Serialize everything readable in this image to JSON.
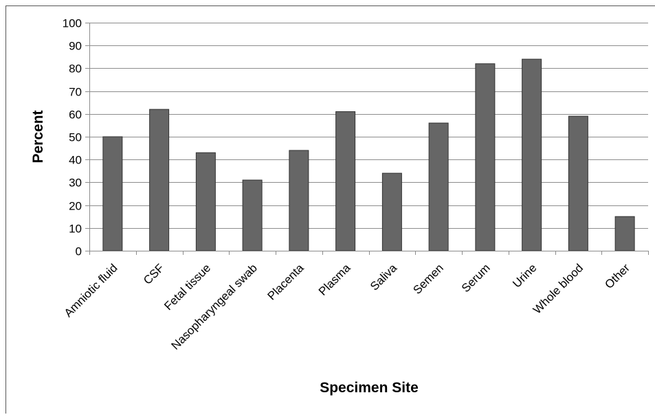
{
  "chart_data": {
    "type": "bar",
    "title": "",
    "xlabel": "Specimen Site",
    "ylabel": "Percent",
    "ylim": [
      0,
      100
    ],
    "yticks": [
      0,
      10,
      20,
      30,
      40,
      50,
      60,
      70,
      80,
      90,
      100
    ],
    "grid": true,
    "legend": "none",
    "bar_color": "#666666",
    "categories": [
      "Amniotic fluid",
      "CSF",
      "Fetal tissue",
      "Nasopharyngeal swab",
      "Placenta",
      "Plasma",
      "Saliva",
      "Semen",
      "Serum",
      "Urine",
      "Whole blood",
      "Other"
    ],
    "values": [
      50,
      62,
      43,
      31,
      44,
      61,
      34,
      56,
      82,
      84,
      59,
      15
    ]
  }
}
